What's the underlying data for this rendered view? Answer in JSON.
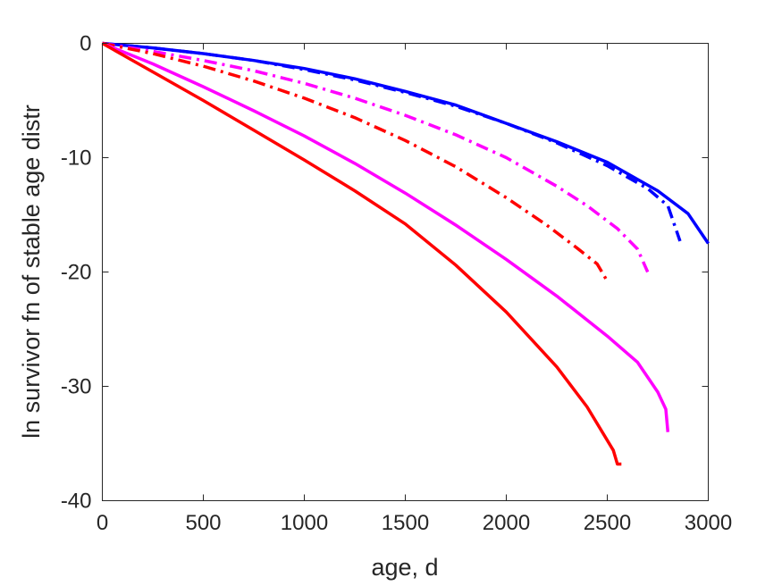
{
  "chart_data": {
    "type": "line",
    "xlabel": "age, d",
    "ylabel": "ln survivor fn of stable age distr",
    "xlim": [
      0,
      3000
    ],
    "ylim": [
      -40,
      0
    ],
    "xticks": [
      0,
      500,
      1000,
      1500,
      2000,
      2500,
      3000
    ],
    "yticks": [
      0,
      -10,
      -20,
      -30,
      -40
    ],
    "xtick_labels": [
      "0",
      "500",
      "1000",
      "1500",
      "2000",
      "2500",
      "3000"
    ],
    "ytick_labels": [
      "0",
      "-10",
      "-20",
      "-30",
      "-40"
    ],
    "grid": false,
    "series": [
      {
        "color": "#0000ff",
        "style": "solid",
        "x": [
          0,
          250,
          500,
          750,
          1000,
          1250,
          1500,
          1750,
          2000,
          2250,
          2500,
          2750,
          2900,
          3000
        ],
        "y": [
          0,
          -0.4,
          -0.9,
          -1.5,
          -2.2,
          -3.1,
          -4.2,
          -5.4,
          -7.0,
          -8.6,
          -10.4,
          -12.9,
          -14.9,
          -17.5
        ]
      },
      {
        "color": "#0000ff",
        "style": "dashdot",
        "x": [
          0,
          250,
          500,
          750,
          1000,
          1250,
          1500,
          1750,
          2000,
          2250,
          2500,
          2700,
          2800,
          2860
        ],
        "y": [
          0,
          -0.4,
          -0.9,
          -1.5,
          -2.3,
          -3.2,
          -4.3,
          -5.5,
          -7.0,
          -8.7,
          -10.7,
          -12.7,
          -14.2,
          -17.3
        ]
      },
      {
        "color": "#ff00ff",
        "style": "dashdot",
        "x": [
          0,
          250,
          500,
          750,
          1000,
          1250,
          1500,
          1750,
          2000,
          2250,
          2400,
          2550,
          2650,
          2700
        ],
        "y": [
          0,
          -0.7,
          -1.5,
          -2.4,
          -3.5,
          -4.8,
          -6.3,
          -8.0,
          -10.0,
          -12.5,
          -14.2,
          -16.2,
          -18.0,
          -20.0
        ]
      },
      {
        "color": "#ff0000",
        "style": "dashdot",
        "x": [
          0,
          250,
          500,
          750,
          1000,
          1250,
          1500,
          1750,
          2000,
          2200,
          2350,
          2450,
          2500
        ],
        "y": [
          0,
          -0.9,
          -2.0,
          -3.3,
          -4.8,
          -6.5,
          -8.5,
          -10.8,
          -13.5,
          -15.9,
          -17.9,
          -19.3,
          -20.8
        ]
      },
      {
        "color": "#ff00ff",
        "style": "solid",
        "x": [
          0,
          250,
          500,
          750,
          1000,
          1250,
          1500,
          1750,
          2000,
          2250,
          2500,
          2650,
          2750,
          2790,
          2800
        ],
        "y": [
          0,
          -1.8,
          -3.8,
          -5.9,
          -8.1,
          -10.5,
          -13.1,
          -15.9,
          -18.9,
          -22.1,
          -25.6,
          -27.9,
          -30.5,
          -32.0,
          -34.0
        ]
      },
      {
        "color": "#ff0000",
        "style": "solid",
        "x": [
          0,
          250,
          500,
          750,
          1000,
          1250,
          1500,
          1750,
          2000,
          2250,
          2400,
          2530,
          2550,
          2570
        ],
        "y": [
          0,
          -2.5,
          -5.0,
          -7.6,
          -10.2,
          -12.9,
          -15.8,
          -19.4,
          -23.5,
          -28.3,
          -31.8,
          -35.6,
          -36.8,
          -36.8
        ]
      }
    ]
  }
}
